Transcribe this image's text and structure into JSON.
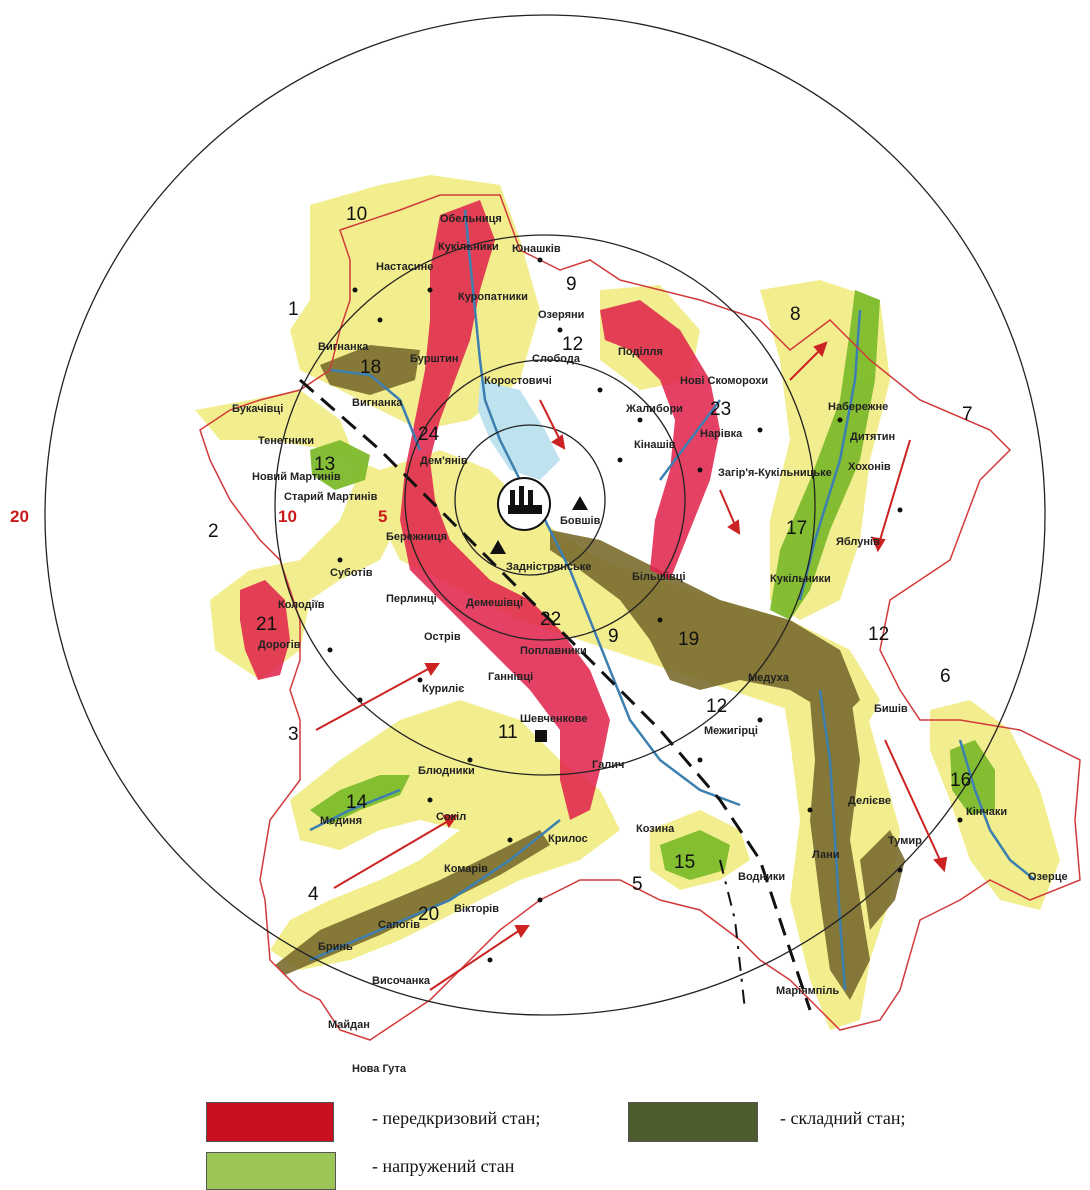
{
  "map": {
    "ring_labels": {
      "r20": "20",
      "r10": "10",
      "r5": "5"
    },
    "zone_numbers": [
      "1",
      "2",
      "3",
      "4",
      "5",
      "6",
      "7",
      "8",
      "9",
      "9",
      "10",
      "11",
      "12",
      "12",
      "12",
      "12",
      "13",
      "14",
      "15",
      "16",
      "17",
      "18",
      "19",
      "20",
      "21",
      "22",
      "23",
      "24"
    ],
    "places": [
      "Обельниця",
      "Кукільники",
      "Юнашків",
      "Настасине",
      "Куропатники",
      "Озеряни",
      "Вигнанка",
      "Бурштин",
      "Слобода",
      "Поділля",
      "Нові Скоморохи",
      "Набережне",
      "Дитятин",
      "Букачівці",
      "Тенетники",
      "Вигнанка",
      "Коростовичі",
      "Жалибори",
      "Нарівка",
      "Хохонів",
      "Новий Мартинів",
      "Старий Мартинів",
      "Дем'янів",
      "Кінашів",
      "Загір'я-Кукільницьке",
      "Яблунів",
      "Бовшів",
      "Задністрянське",
      "Бережниця",
      "Більшівці",
      "Кукільники",
      "Суботів",
      "Перлинці",
      "Демешівці",
      "Колодіїв",
      "Дорогів",
      "Острів",
      "Поплавники",
      "Медуха",
      "Бишів",
      "Ганнівці",
      "Куриліє",
      "Шевченкове",
      "Межигірці",
      "Галич",
      "Блюдники",
      "Делієве",
      "Мединя",
      "Сокіл",
      "Козина",
      "Крилос",
      "Тумир",
      "Кінчаки",
      "Озерце",
      "Комарів",
      "Вікторів",
      "Водники",
      "Лани",
      "Бринь",
      "Сапогів",
      "Височанка",
      "Маріямпіль",
      "Майдан",
      "Нова Гута"
    ]
  },
  "legend": {
    "items": [
      {
        "label": "- передкризовий стан;",
        "color": "#c8101f"
      },
      {
        "label": "- складний стан;",
        "color": "#4c5c2c"
      },
      {
        "label": "- напружений стан",
        "color": "#9cc456"
      }
    ]
  },
  "colors": {
    "yellow_zone": "#f1ec82",
    "red_zone": "#e0204a",
    "olive_zone": "#7a6b2e",
    "green_zone": "#7dbb2c",
    "boundary": "#d23a3a",
    "river": "#3c7fb0",
    "ring": "#222222"
  }
}
